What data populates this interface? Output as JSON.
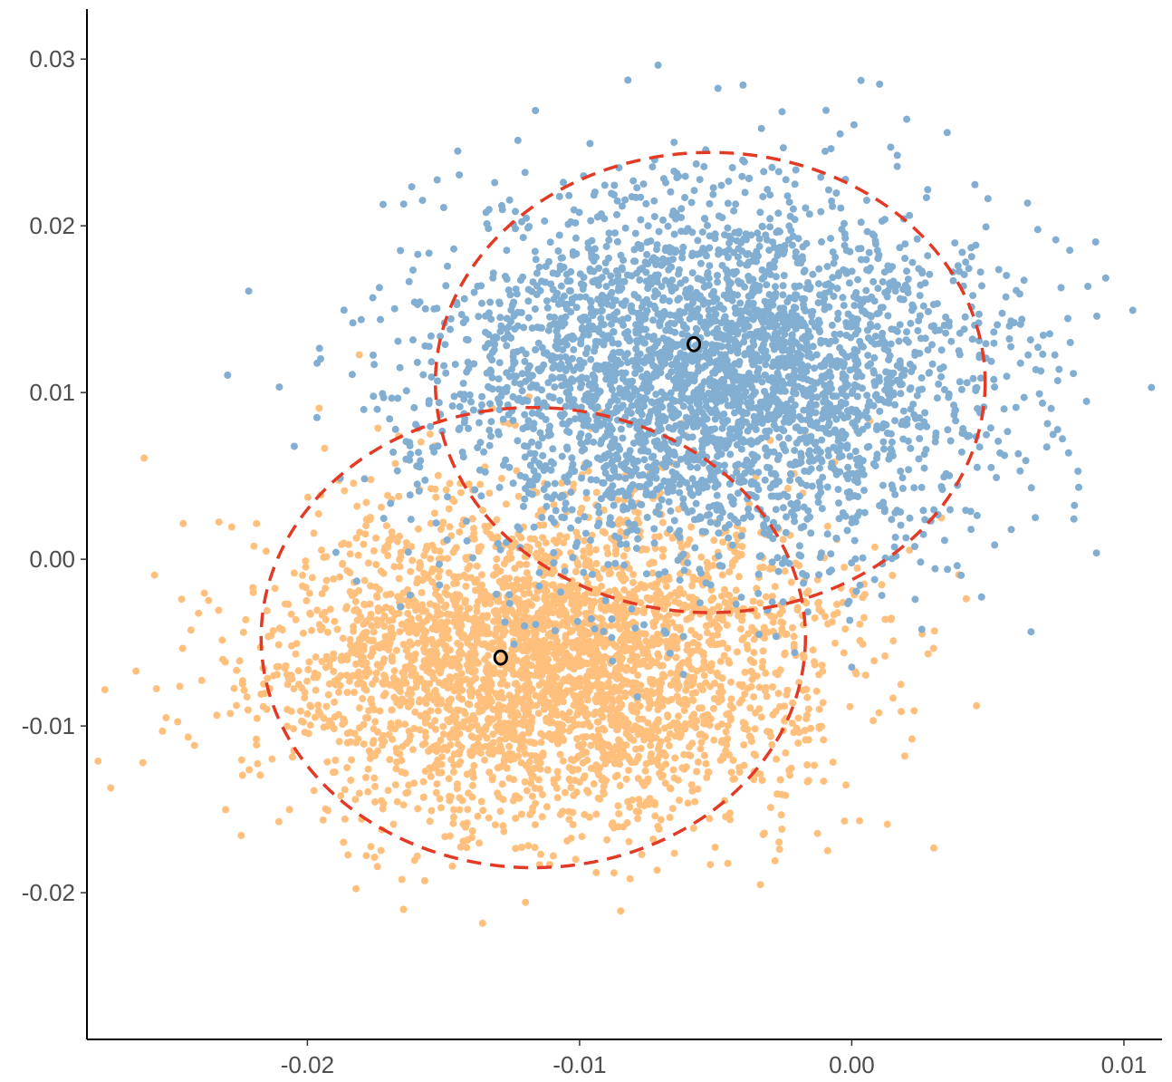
{
  "chart_data": {
    "type": "scatter",
    "title": "",
    "xlabel": "",
    "ylabel": "",
    "xlim": [
      -0.0281,
      0.0114
    ],
    "ylim": [
      -0.0288,
      0.033
    ],
    "x_ticks": [
      -0.02,
      -0.01,
      0.0,
      0.01
    ],
    "x_tick_labels": [
      "-0.02",
      "-0.01",
      "0.00",
      "0.01"
    ],
    "y_ticks": [
      -0.02,
      -0.01,
      0.0,
      0.01,
      0.02,
      0.03
    ],
    "y_tick_labels": [
      "-0.02",
      "-0.01",
      "0.00",
      "0.01",
      "0.02",
      "0.03"
    ],
    "grid": false,
    "legend": "none",
    "series": [
      {
        "color": "#FFC07E",
        "center": [
          -0.0112,
          -0.0061
        ],
        "sd": [
          0.005,
          0.0048
        ],
        "n_points": 3500,
        "seed": 11
      },
      {
        "color": "#82AED2",
        "center": [
          -0.0053,
          0.0108
        ],
        "sd": [
          0.005,
          0.0054
        ],
        "n_points": 3500,
        "seed": 23
      }
    ],
    "ellipses": [
      {
        "color": "#E23A24",
        "style": "dashed",
        "center": [
          -0.0117,
          -0.0047
        ],
        "radii": [
          0.01,
          0.0138
        ]
      },
      {
        "color": "#E23A24",
        "style": "dashed",
        "center": [
          -0.0052,
          0.0106
        ],
        "radii": [
          0.0101,
          0.0138
        ]
      },
      {
        "color": "#000000",
        "style": "solid",
        "center": [
          -0.0129,
          -0.0059
        ],
        "radii": [
          0.00022,
          0.0004
        ]
      },
      {
        "color": "#000000",
        "style": "solid",
        "center": [
          -0.0058,
          0.0129
        ],
        "radii": [
          0.00022,
          0.0004
        ]
      }
    ]
  }
}
